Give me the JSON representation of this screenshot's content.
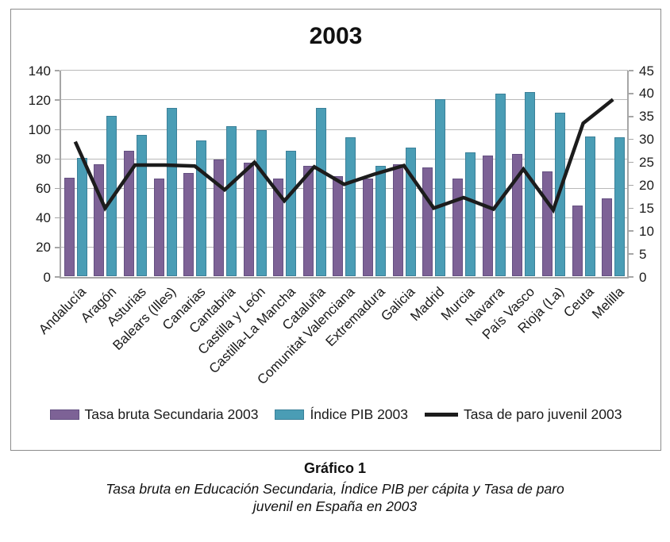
{
  "figure": {
    "caption_label": "Gráfico 1",
    "caption_text": "Tasa bruta en Educación Secundaria, Índice PIB per cápita y Tasa de paro juvenil en España en 2003"
  },
  "chart_data": {
    "type": "bar",
    "title": "2003",
    "categories": [
      "Andalucía",
      "Aragón",
      "Asturias",
      "Balears (Illes)",
      "Canarias",
      "Cantabria",
      "Castilla y León",
      "Castilla-La Mancha",
      "Cataluña",
      "Comunitat Valenciana",
      "Extremadura",
      "Galicia",
      "Madrid",
      "Murcia",
      "Navarra",
      "País Vasco",
      "Rioja (La)",
      "Ceuta",
      "Melilla"
    ],
    "series": [
      {
        "name": "Tasa bruta Secundaria 2003",
        "type": "bar",
        "axis": "left",
        "color": "#7d6296",
        "values": [
          67,
          76,
          85,
          66,
          70,
          79,
          77,
          66,
          75,
          68,
          66,
          76,
          74,
          66,
          82,
          83,
          71,
          48,
          53
        ]
      },
      {
        "name": "Índice PIB 2003",
        "type": "bar",
        "axis": "left",
        "color": "#4a9db5",
        "values": [
          80,
          109,
          96,
          114,
          92,
          102,
          99,
          85,
          114,
          94,
          75,
          87,
          120,
          84,
          124,
          125,
          111,
          95,
          94
        ]
      },
      {
        "name": "Tasa de paro juvenil 2003",
        "type": "line",
        "axis": "right",
        "color": "#1c1c1c",
        "values": [
          29.5,
          15,
          24.4,
          24.4,
          24.2,
          19,
          25,
          16.6,
          24,
          20.2,
          22.4,
          24.3,
          15,
          17.3,
          14.8,
          23.5,
          14.6,
          33.5,
          38.7
        ]
      }
    ],
    "left_axis": {
      "min": 0,
      "max": 140,
      "step": 20,
      "ticks": [
        0,
        20,
        40,
        60,
        80,
        100,
        120,
        140
      ]
    },
    "right_axis": {
      "min": 0,
      "max": 45,
      "step": 5,
      "ticks": [
        0,
        5,
        10,
        15,
        20,
        25,
        30,
        35,
        40,
        45
      ]
    },
    "grid": true,
    "legend_position": "bottom"
  }
}
